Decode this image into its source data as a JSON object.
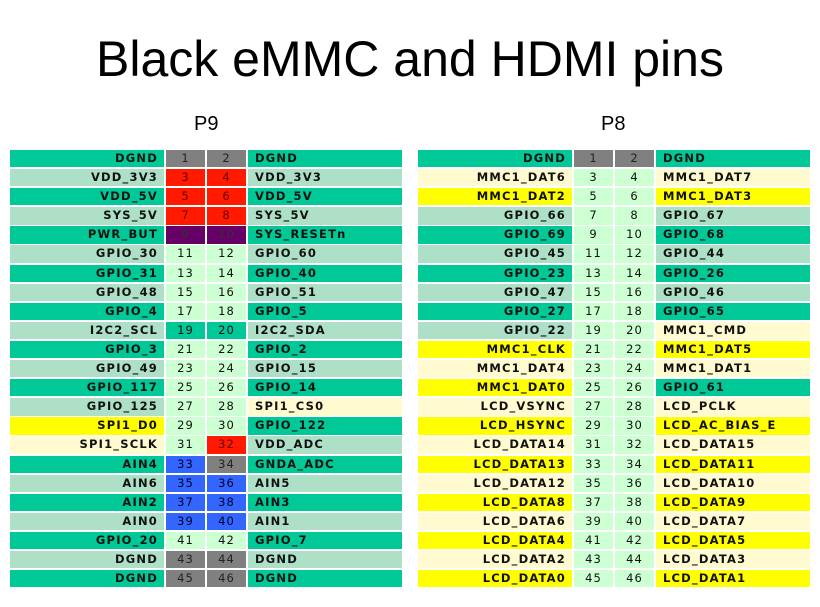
{
  "title": "Black eMMC and HDMI pins",
  "legend_colors": {
    "t": "#00c896",
    "l": "#aee0c8",
    "c": "#fffad0",
    "y": "#ffff00",
    "g": "#808080",
    "r": "#ff1a00",
    "p": "#660066",
    "b": "#3366ff",
    "n": "#ccffd2"
  },
  "headers": [
    {
      "label": "P9",
      "rows": [
        [
          "DGND",
          "t",
          "1",
          "g",
          "2",
          "g",
          "DGND",
          "t"
        ],
        [
          "VDD_3V3",
          "l",
          "3",
          "r",
          "4",
          "r",
          "VDD_3V3",
          "l"
        ],
        [
          "VDD_5V",
          "t",
          "5",
          "r",
          "6",
          "r",
          "VDD_5V",
          "t"
        ],
        [
          "SYS_5V",
          "l",
          "7",
          "r",
          "8",
          "r",
          "SYS_5V",
          "l"
        ],
        [
          "PWR_BUT",
          "t",
          "9",
          "p",
          "10",
          "p",
          "SYS_RESETn",
          "t"
        ],
        [
          "GPIO_30",
          "l",
          "11",
          "n",
          "12",
          "n",
          "GPIO_60",
          "l"
        ],
        [
          "GPIO_31",
          "t",
          "13",
          "n",
          "14",
          "n",
          "GPIO_40",
          "t"
        ],
        [
          "GPIO_48",
          "l",
          "15",
          "n",
          "16",
          "n",
          "GPIO_51",
          "l"
        ],
        [
          "GPIO_4",
          "t",
          "17",
          "n",
          "18",
          "n",
          "GPIO_5",
          "t"
        ],
        [
          "I2C2_SCL",
          "l",
          "19",
          "t",
          "20",
          "t",
          "I2C2_SDA",
          "l"
        ],
        [
          "GPIO_3",
          "t",
          "21",
          "n",
          "22",
          "n",
          "GPIO_2",
          "t"
        ],
        [
          "GPIO_49",
          "l",
          "23",
          "n",
          "24",
          "n",
          "GPIO_15",
          "l"
        ],
        [
          "GPIO_117",
          "t",
          "25",
          "n",
          "26",
          "n",
          "GPIO_14",
          "t"
        ],
        [
          "GPIO_125",
          "l",
          "27",
          "n",
          "28",
          "n",
          "SPI1_CS0",
          "c"
        ],
        [
          "SPI1_D0",
          "y",
          "29",
          "n",
          "30",
          "n",
          "GPIO_122",
          "t"
        ],
        [
          "SPI1_SCLK",
          "c",
          "31",
          "n",
          "32",
          "r",
          "VDD_ADC",
          "l"
        ],
        [
          "AIN4",
          "t",
          "33",
          "b",
          "34",
          "g",
          "GNDA_ADC",
          "t"
        ],
        [
          "AIN6",
          "l",
          "35",
          "b",
          "36",
          "b",
          "AIN5",
          "l"
        ],
        [
          "AIN2",
          "t",
          "37",
          "b",
          "38",
          "b",
          "AIN3",
          "t"
        ],
        [
          "AIN0",
          "l",
          "39",
          "b",
          "40",
          "b",
          "AIN1",
          "l"
        ],
        [
          "GPIO_20",
          "t",
          "41",
          "n",
          "42",
          "n",
          "GPIO_7",
          "t"
        ],
        [
          "DGND",
          "l",
          "43",
          "g",
          "44",
          "g",
          "DGND",
          "l"
        ],
        [
          "DGND",
          "t",
          "45",
          "g",
          "46",
          "g",
          "DGND",
          "t"
        ]
      ]
    },
    {
      "label": "P8",
      "rows": [
        [
          "DGND",
          "t",
          "1",
          "g",
          "2",
          "g",
          "DGND",
          "t"
        ],
        [
          "MMC1_DAT6",
          "c",
          "3",
          "n",
          "4",
          "n",
          "MMC1_DAT7",
          "c"
        ],
        [
          "MMC1_DAT2",
          "y",
          "5",
          "n",
          "6",
          "n",
          "MMC1_DAT3",
          "y"
        ],
        [
          "GPIO_66",
          "l",
          "7",
          "n",
          "8",
          "n",
          "GPIO_67",
          "l"
        ],
        [
          "GPIO_69",
          "t",
          "9",
          "n",
          "10",
          "n",
          "GPIO_68",
          "t"
        ],
        [
          "GPIO_45",
          "l",
          "11",
          "n",
          "12",
          "n",
          "GPIO_44",
          "l"
        ],
        [
          "GPIO_23",
          "t",
          "13",
          "n",
          "14",
          "n",
          "GPIO_26",
          "t"
        ],
        [
          "GPIO_47",
          "l",
          "15",
          "n",
          "16",
          "n",
          "GPIO_46",
          "l"
        ],
        [
          "GPIO_27",
          "t",
          "17",
          "n",
          "18",
          "n",
          "GPIO_65",
          "t"
        ],
        [
          "GPIO_22",
          "l",
          "19",
          "n",
          "20",
          "n",
          "MMC1_CMD",
          "c"
        ],
        [
          "MMC1_CLK",
          "y",
          "21",
          "n",
          "22",
          "n",
          "MMC1_DAT5",
          "y"
        ],
        [
          "MMC1_DAT4",
          "c",
          "23",
          "n",
          "24",
          "n",
          "MMC1_DAT1",
          "c"
        ],
        [
          "MMC1_DAT0",
          "y",
          "25",
          "n",
          "26",
          "n",
          "GPIO_61",
          "t"
        ],
        [
          "LCD_VSYNC",
          "c",
          "27",
          "n",
          "28",
          "n",
          "LCD_PCLK",
          "c"
        ],
        [
          "LCD_HSYNC",
          "y",
          "29",
          "n",
          "30",
          "n",
          "LCD_AC_BIAS_E",
          "y"
        ],
        [
          "LCD_DATA14",
          "c",
          "31",
          "n",
          "32",
          "n",
          "LCD_DATA15",
          "c"
        ],
        [
          "LCD_DATA13",
          "y",
          "33",
          "n",
          "34",
          "n",
          "LCD_DATA11",
          "y"
        ],
        [
          "LCD_DATA12",
          "c",
          "35",
          "n",
          "36",
          "n",
          "LCD_DATA10",
          "c"
        ],
        [
          "LCD_DATA8",
          "y",
          "37",
          "n",
          "38",
          "n",
          "LCD_DATA9",
          "y"
        ],
        [
          "LCD_DATA6",
          "c",
          "39",
          "n",
          "40",
          "n",
          "LCD_DATA7",
          "c"
        ],
        [
          "LCD_DATA4",
          "y",
          "41",
          "n",
          "42",
          "n",
          "LCD_DATA5",
          "y"
        ],
        [
          "LCD_DATA2",
          "c",
          "43",
          "n",
          "44",
          "n",
          "LCD_DATA3",
          "c"
        ],
        [
          "LCD_DATA0",
          "y",
          "45",
          "n",
          "46",
          "n",
          "LCD_DATA1",
          "y"
        ]
      ]
    }
  ]
}
